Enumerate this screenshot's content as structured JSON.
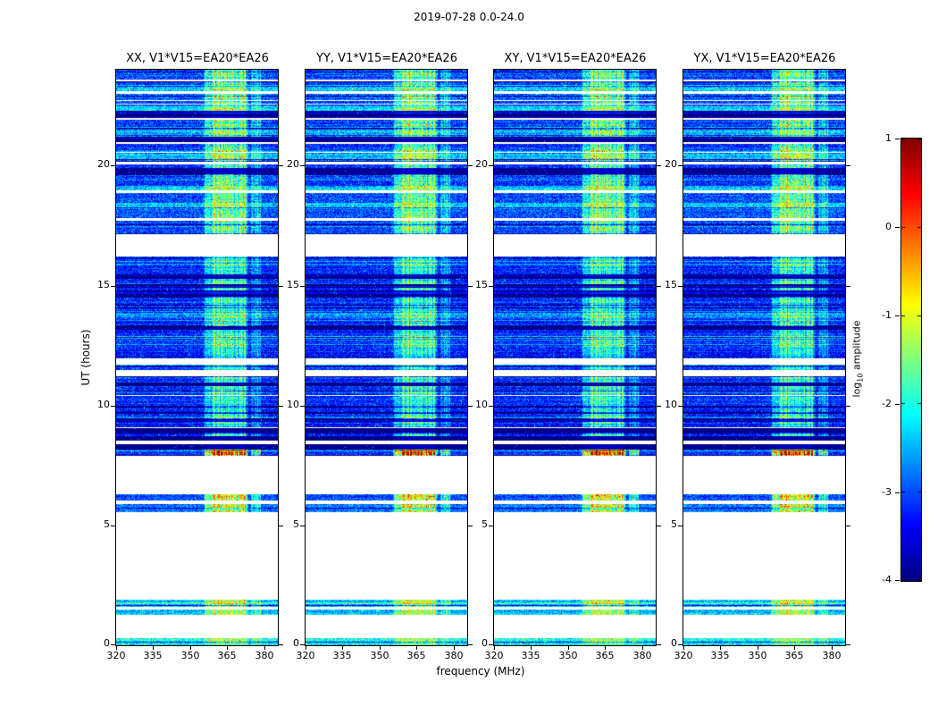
{
  "chart_data": {
    "type": "heatmap",
    "title": "2019-07-28 0.0-24.0",
    "xlabel": "frequency (MHz)",
    "ylabel": "UT (hours)",
    "x_ticks": [
      320,
      335,
      350,
      365,
      380
    ],
    "y_ticks": [
      0,
      5,
      10,
      15,
      20
    ],
    "x_range_mhz": [
      320,
      385.5
    ],
    "y_range_hours": [
      0,
      24
    ],
    "panels": [
      {
        "id": "xx",
        "title": "XX, V1*V15=EA20*EA26"
      },
      {
        "id": "yy",
        "title": "YY, V1*V15=EA20*EA26"
      },
      {
        "id": "xy",
        "title": "XY, V1*V15=EA20*EA26"
      },
      {
        "id": "yx",
        "title": "YX, V1*V15=EA20*EA26"
      }
    ],
    "colorbar": {
      "label": "log10 amplitude",
      "label_parts": {
        "prefix": "log",
        "sub": "10",
        "suffix": " amplitude"
      },
      "ticks": [
        1,
        0,
        -1,
        -2,
        -3,
        -4
      ],
      "vmin": -4,
      "vmax": 1,
      "colormap": "jet"
    },
    "rfi_band_mhz": [
      356.5,
      372.5
    ],
    "rfi_subband_mhz": [
      374.5,
      378.5
    ],
    "segment_styles": {
      "noise": {
        "base": -3.15,
        "spread": 0.4,
        "band": 1.15,
        "speckle": 0.35
      },
      "noiset": {
        "base": -3.0,
        "spread": 0.45,
        "band": 1.3,
        "speckle": 0.5
      },
      "cyan": {
        "base": -2.35,
        "spread": 0.45,
        "band": 1.0,
        "speckle": 0.45
      },
      "cyan2": {
        "base": -2.1,
        "spread": 0.5,
        "band": 0.6,
        "speckle": 0.5
      },
      "cyanband": {
        "base": -2.8,
        "spread": 0.4,
        "band": 1.5,
        "speckle": 0.55
      },
      "noiseband": {
        "base": -3.0,
        "spread": 0.4,
        "band": 1.9,
        "speckle": 0.6
      },
      "flare": {
        "base": -2.9,
        "spread": 0.4,
        "band": 2.7,
        "speckle": 0.8
      },
      "black": {
        "base": -3.95,
        "spread": 0.1,
        "band": 0.25,
        "speckle": 0.08
      }
    },
    "time_segments": [
      [
        0.0,
        0.3,
        "cyan2"
      ],
      [
        0.3,
        1.25,
        "white"
      ],
      [
        1.25,
        1.5,
        "cyan"
      ],
      [
        1.5,
        1.62,
        "white"
      ],
      [
        1.62,
        1.9,
        "cyan"
      ],
      [
        1.9,
        5.55,
        "white"
      ],
      [
        5.55,
        5.9,
        "cyanband"
      ],
      [
        5.9,
        6.05,
        "white"
      ],
      [
        6.05,
        6.3,
        "noiseband"
      ],
      [
        6.3,
        7.9,
        "white"
      ],
      [
        7.9,
        8.15,
        "flare"
      ],
      [
        8.15,
        8.4,
        "black"
      ],
      [
        8.4,
        8.55,
        "white"
      ],
      [
        8.55,
        8.72,
        "black"
      ],
      [
        8.72,
        8.88,
        "noise"
      ],
      [
        8.88,
        9.05,
        "black"
      ],
      [
        9.05,
        9.3,
        "noise"
      ],
      [
        9.3,
        9.42,
        "black"
      ],
      [
        9.42,
        10.8,
        "noise"
      ],
      [
        10.8,
        10.95,
        "black"
      ],
      [
        10.95,
        11.2,
        "noise"
      ],
      [
        11.2,
        11.48,
        "white"
      ],
      [
        11.48,
        11.72,
        "noise"
      ],
      [
        11.72,
        11.95,
        "white"
      ],
      [
        11.95,
        12.7,
        "noise"
      ],
      [
        12.7,
        12.9,
        "cyan"
      ],
      [
        12.9,
        13.15,
        "noise"
      ],
      [
        13.15,
        13.3,
        "black"
      ],
      [
        13.3,
        13.75,
        "noise"
      ],
      [
        13.75,
        13.95,
        "cyan"
      ],
      [
        13.95,
        14.55,
        "noise"
      ],
      [
        14.55,
        14.78,
        "black"
      ],
      [
        14.78,
        14.9,
        "noise"
      ],
      [
        14.9,
        15.05,
        "black"
      ],
      [
        15.05,
        15.28,
        "noise"
      ],
      [
        15.28,
        15.45,
        "black"
      ],
      [
        15.45,
        16.2,
        "noise"
      ],
      [
        16.2,
        17.15,
        "white"
      ],
      [
        17.15,
        17.7,
        "noiset"
      ],
      [
        17.7,
        17.82,
        "white"
      ],
      [
        17.82,
        18.2,
        "noiset"
      ],
      [
        18.2,
        18.45,
        "cyan"
      ],
      [
        18.45,
        18.85,
        "noiset"
      ],
      [
        18.85,
        18.97,
        "white"
      ],
      [
        18.97,
        19.12,
        "cyan"
      ],
      [
        19.12,
        19.65,
        "noiset"
      ],
      [
        19.65,
        19.9,
        "black"
      ],
      [
        19.9,
        20.05,
        "noiset"
      ],
      [
        20.05,
        20.15,
        "white"
      ],
      [
        20.15,
        20.28,
        "noiset"
      ],
      [
        20.28,
        20.5,
        "cyan"
      ],
      [
        20.5,
        20.9,
        "noiset"
      ],
      [
        20.9,
        21.0,
        "white"
      ],
      [
        21.0,
        21.2,
        "black"
      ],
      [
        21.2,
        21.55,
        "cyan"
      ],
      [
        21.55,
        21.9,
        "noiset"
      ],
      [
        21.9,
        22.0,
        "white"
      ],
      [
        22.0,
        22.3,
        "black"
      ],
      [
        22.3,
        22.6,
        "cyan"
      ],
      [
        22.6,
        23.0,
        "noiset"
      ],
      [
        23.0,
        23.1,
        "white"
      ],
      [
        23.1,
        23.35,
        "cyan"
      ],
      [
        23.35,
        23.5,
        "noiset"
      ],
      [
        23.5,
        23.58,
        "white"
      ],
      [
        23.58,
        24.0,
        "noiset"
      ]
    ]
  }
}
